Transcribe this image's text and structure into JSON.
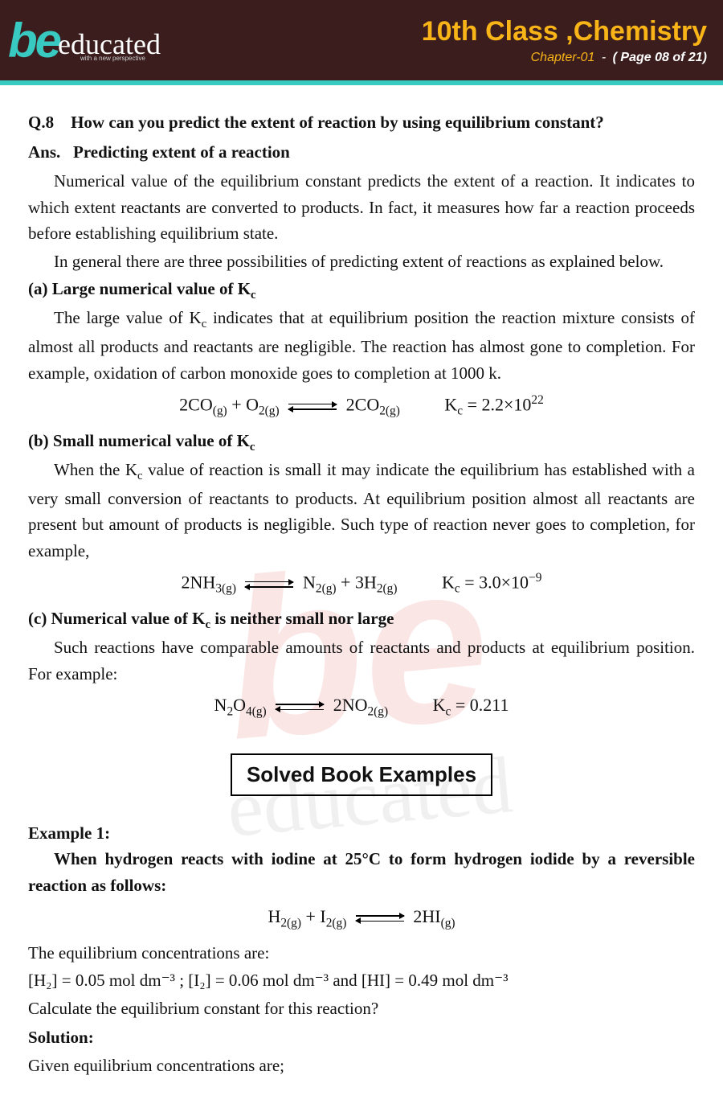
{
  "header": {
    "logo_b": "be",
    "logo_word": "educated",
    "logo_tag": "with a new perspective",
    "title": "10th Class ,Chemistry",
    "chapter": "Chapter-01",
    "page": "( Page 08 of 21)",
    "bg_color": "#3b1d1d",
    "accent_color": "#38c9c0",
    "title_color": "#f9b418"
  },
  "question": {
    "number": "Q.8",
    "text": "How can you predict the extent of reaction by using equilibrium constant?",
    "answer_label": "Ans.",
    "answer_title": "Predicting extent of a reaction"
  },
  "paragraphs": {
    "intro1": "Numerical value of the equilibrium constant predicts the extent of a reaction. It indicates to which extent reactants are converted to products. In fact, it measures how far a reaction proceeds before establishing equilibrium state.",
    "intro2": "In general there are three possibilities of predicting extent of reactions as explained below.",
    "a_head": "(a) Large numerical value of K",
    "a_head_sub": "c",
    "a_body": "The large value of Kᴄ indicates that at equilibrium position the reaction mixture consists of almost all products and reactants are negligible. The reaction has almost gone to completion. For example, oxidation of carbon monoxide goes to completion at 1000 k.",
    "b_head": "(b) Small numerical value of K",
    "b_head_sub": "c",
    "b_body": "When the Kᴄ value of reaction is small it may indicate the equilibrium has established with a very small conversion of reactants to products. At equilibrium position almost all reactants are present but amount of products is negligible. Such type of reaction never goes to completion, for example,",
    "c_head": "(c) Numerical value of K",
    "c_head_sub": "c",
    "c_head_tail": " is neither small nor large",
    "c_body": "Such reactions have comparable amounts of reactants and products at equilibrium position. For example:"
  },
  "equations": {
    "a": {
      "lhs": "2CO",
      "lhs_sub": "(g)",
      "plus": " + O",
      "plus_sub": "2(g)",
      "rhs": "2CO",
      "rhs_sub": "2(g)",
      "kc_label": "K",
      "kc_sub": "c",
      "kc_val": " = 2.2×10",
      "kc_exp": "22"
    },
    "b": {
      "lhs": "2NH",
      "lhs_sub": "3(g)",
      "rhs1": "N",
      "rhs1_sub": "2(g)",
      "plus": " + 3H",
      "plus_sub": "2(g)",
      "kc_label": "K",
      "kc_sub": "c",
      "kc_val": " = 3.0×10",
      "kc_exp": "−9"
    },
    "c": {
      "lhs": "N",
      "lhs_sub1": "2",
      "lhs2": "O",
      "lhs_sub2": "4(g)",
      "rhs": "2NO",
      "rhs_sub": "2(g)",
      "kc_label": "K",
      "kc_sub": "c",
      "kc_val": " = 0.211"
    },
    "ex": {
      "lhs": "H",
      "lhs_sub": "2(g)",
      "plus": " + I",
      "plus_sub": "2(g)",
      "rhs": "2HI",
      "rhs_sub": "(g)"
    }
  },
  "solved": {
    "box": "Solved Book Examples",
    "ex_label": "Example 1:",
    "ex_statement": "When hydrogen reacts with iodine at 25°C to form hydrogen iodide by a reversible reaction as follows:",
    "conc_intro": "The  equilibrium concentrations are:",
    "conc_line": "[H₂]  =  0.05 mol dm⁻³ ; [I₂]  =  0.06 mol dm⁻³ and [HI] = 0.49 mol dm⁻³",
    "calc": "Calculate the equilibrium constant for this reaction?",
    "sol_label": "Solution:",
    "given": "Given equilibrium concentrations are;"
  },
  "watermark_color": "#e03a3a"
}
